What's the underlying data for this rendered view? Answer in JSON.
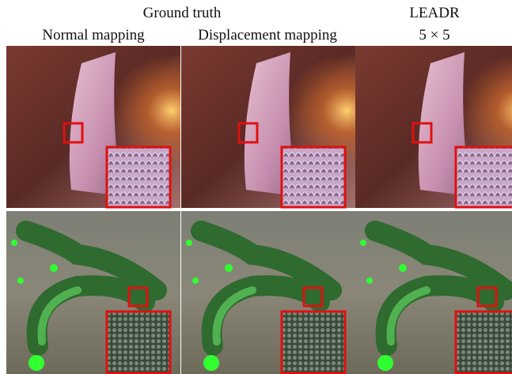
{
  "header": {
    "group_title": "Ground truth",
    "method_title": "LEADR"
  },
  "columns": [
    "Normal mapping",
    "Displacement mapping",
    "5 × 5"
  ]
}
